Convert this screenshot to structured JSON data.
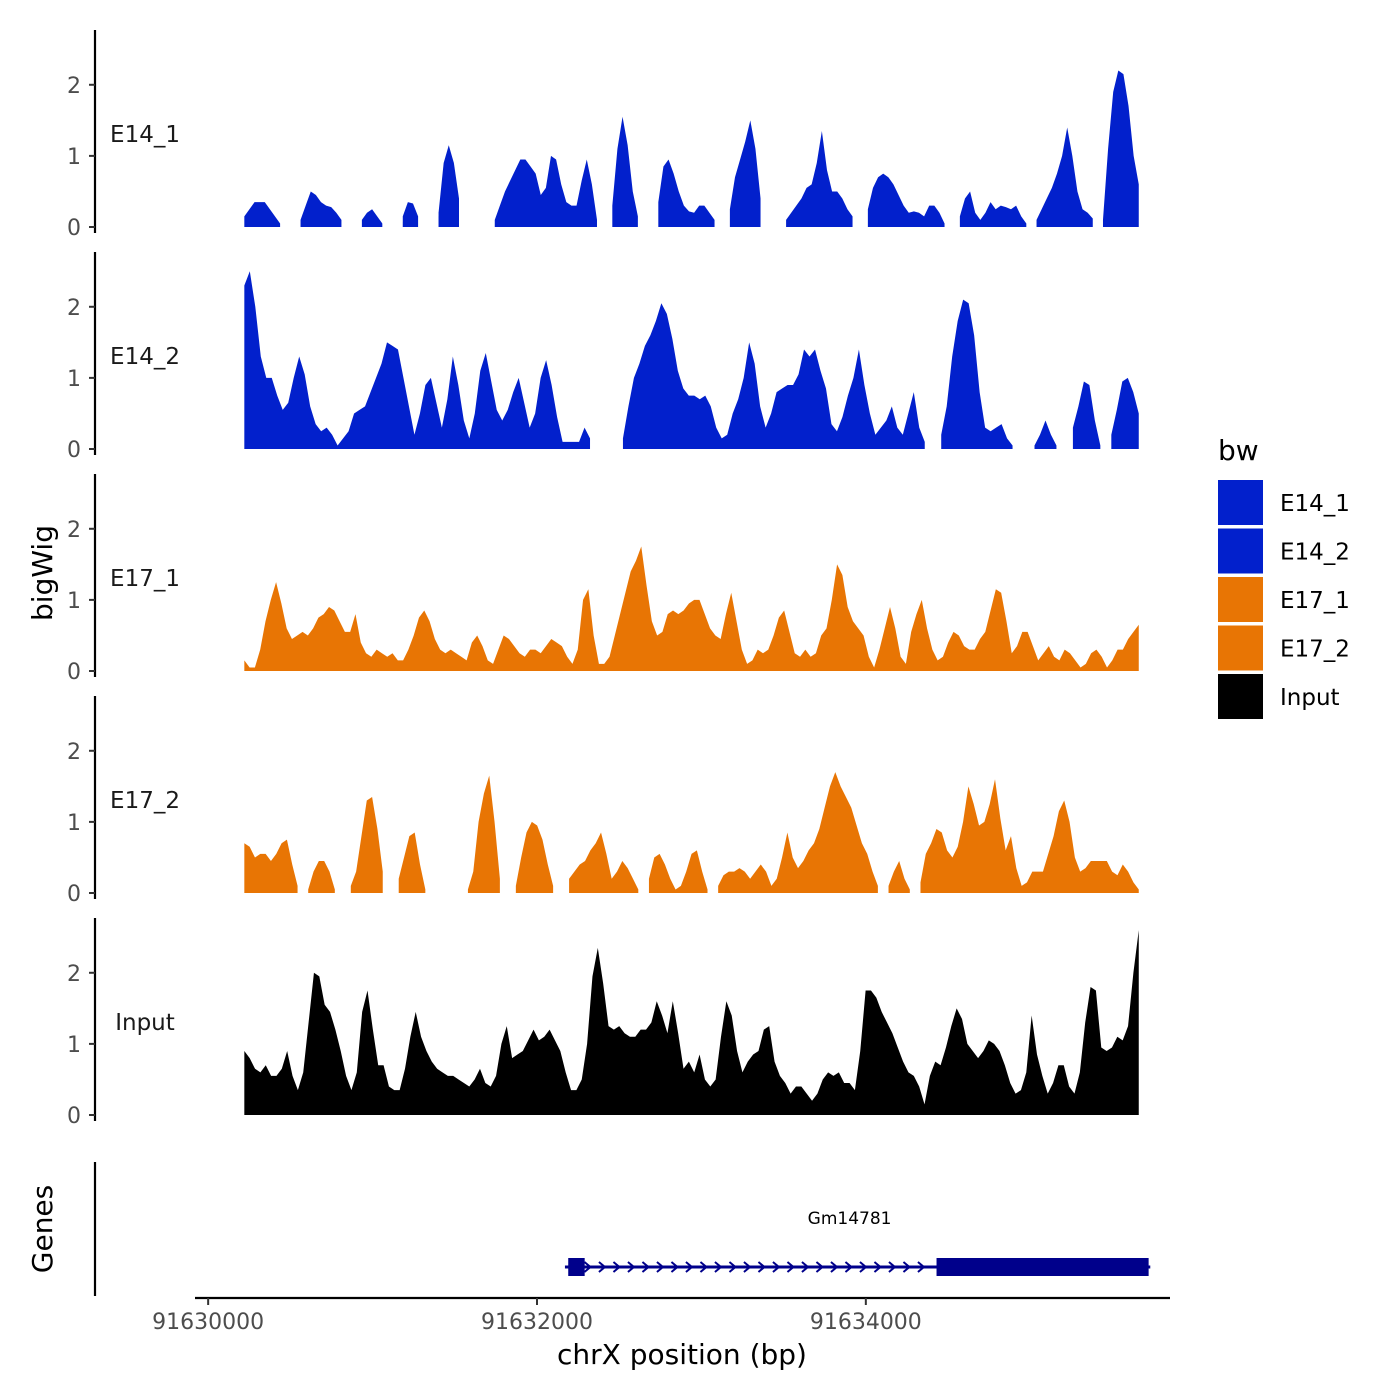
{
  "chart_data": {
    "type": "area",
    "ylabel": "bigWig",
    "xlabel": "chrX position (bp)",
    "ylim": [
      0,
      2.7
    ],
    "yticks": [
      "0",
      "1",
      "2"
    ],
    "xlim": [
      91629920,
      91635850
    ],
    "xticks": [
      {
        "value": 91630000,
        "label": "91630000"
      },
      {
        "value": 91632000,
        "label": "91632000"
      },
      {
        "value": 91634000,
        "label": "91634000"
      }
    ],
    "data_range": [
      91630220,
      91635660
    ],
    "legend": {
      "title": "bw",
      "entries": [
        {
          "label": "E14_1",
          "color": "#0220CC"
        },
        {
          "label": "E14_2",
          "color": "#0220CC"
        },
        {
          "label": "E17_1",
          "color": "#E87504"
        },
        {
          "label": "E17_2",
          "color": "#E87504"
        },
        {
          "label": "Input",
          "color": "#000000"
        }
      ]
    },
    "series": [
      {
        "name": "E14_1",
        "color": "#0220CC",
        "values": [
          0.15,
          0.25,
          0.35,
          0.35,
          0.35,
          0.25,
          0.15,
          0.05,
          null,
          null,
          null,
          0.1,
          0.3,
          0.5,
          0.45,
          0.35,
          0.3,
          0.28,
          0.2,
          0.1,
          null,
          null,
          null,
          0.1,
          0.2,
          0.25,
          0.15,
          0.05,
          null,
          null,
          null,
          0.15,
          0.35,
          0.33,
          0.15,
          null,
          null,
          null,
          0.2,
          0.9,
          1.15,
          0.9,
          0.4,
          null,
          null,
          null,
          null,
          null,
          null,
          0.1,
          0.3,
          0.5,
          0.65,
          0.8,
          0.95,
          0.95,
          0.85,
          0.75,
          0.45,
          0.55,
          1.0,
          0.95,
          0.6,
          0.35,
          0.3,
          0.3,
          0.65,
          0.95,
          0.6,
          0.1,
          null,
          null,
          0.3,
          1.1,
          1.55,
          1.15,
          0.5,
          0.15,
          null,
          null,
          null,
          0.35,
          0.85,
          0.95,
          0.75,
          0.5,
          0.3,
          0.22,
          0.2,
          0.3,
          0.3,
          0.2,
          0.1,
          null,
          null,
          0.25,
          0.7,
          0.95,
          1.2,
          1.5,
          1.1,
          0.4,
          null,
          null,
          null,
          null,
          0.1,
          0.2,
          0.3,
          0.4,
          0.55,
          0.6,
          0.9,
          1.35,
          0.8,
          0.5,
          0.5,
          0.4,
          0.25,
          0.15,
          null,
          null,
          0.25,
          0.55,
          0.7,
          0.75,
          0.7,
          0.6,
          0.45,
          0.3,
          0.2,
          0.22,
          0.2,
          0.15,
          0.3,
          0.3,
          0.2,
          0.05,
          null,
          null,
          0.15,
          0.4,
          0.5,
          0.2,
          0.1,
          0.2,
          0.35,
          0.25,
          0.3,
          0.28,
          0.25,
          0.3,
          0.15,
          0.05,
          null,
          0.1,
          0.25,
          0.4,
          0.55,
          0.75,
          1.0,
          1.4,
          1.0,
          0.5,
          0.25,
          0.2,
          0.12,
          null,
          0.1,
          1.1,
          1.9,
          2.2,
          2.15,
          1.7,
          1.0,
          0.6
        ]
      },
      {
        "name": "E14_2",
        "color": "#0220CC",
        "values": [
          2.3,
          2.5,
          2.0,
          1.3,
          1.0,
          1.0,
          0.75,
          0.55,
          0.65,
          1.0,
          1.3,
          1.05,
          0.6,
          0.35,
          0.25,
          0.3,
          0.2,
          0.05,
          0.15,
          0.25,
          0.5,
          0.55,
          0.6,
          0.8,
          1.0,
          1.2,
          1.5,
          1.45,
          1.4,
          1.0,
          0.6,
          0.2,
          0.5,
          0.9,
          1.0,
          0.65,
          0.3,
          0.7,
          1.3,
          0.9,
          0.4,
          0.15,
          0.5,
          1.1,
          1.35,
          0.95,
          0.55,
          0.4,
          0.55,
          0.8,
          1.0,
          0.65,
          0.3,
          0.5,
          1.0,
          1.25,
          0.9,
          0.45,
          0.1,
          0.1,
          0.1,
          0.1,
          0.3,
          0.15,
          null,
          null,
          null,
          null,
          null,
          0.15,
          0.6,
          1.0,
          1.2,
          1.45,
          1.6,
          1.8,
          2.05,
          1.9,
          1.55,
          1.1,
          0.85,
          0.75,
          0.75,
          0.7,
          0.75,
          0.6,
          0.3,
          0.15,
          0.2,
          0.5,
          0.7,
          1.0,
          1.5,
          1.2,
          0.6,
          0.3,
          0.5,
          0.8,
          0.85,
          0.9,
          0.9,
          1.05,
          1.4,
          1.3,
          1.4,
          1.1,
          0.85,
          0.35,
          0.25,
          0.45,
          0.75,
          1.0,
          1.4,
          0.9,
          0.5,
          0.2,
          0.3,
          0.4,
          0.6,
          0.3,
          0.2,
          0.5,
          0.8,
          0.3,
          0.1,
          null,
          null,
          0.2,
          0.6,
          1.3,
          1.8,
          2.1,
          2.05,
          1.6,
          0.8,
          0.3,
          0.25,
          0.3,
          0.35,
          0.15,
          0.05,
          null,
          null,
          null,
          0.05,
          0.2,
          0.4,
          0.2,
          0.05,
          null,
          null,
          0.3,
          0.6,
          0.95,
          0.9,
          0.4,
          0.05,
          null,
          0.2,
          0.55,
          0.95,
          1.0,
          0.8,
          0.5
        ]
      },
      {
        "name": "E17_1",
        "color": "#E87504",
        "values": [
          0.15,
          0.05,
          0.05,
          0.3,
          0.7,
          1.0,
          1.25,
          0.95,
          0.6,
          0.45,
          0.5,
          0.55,
          0.5,
          0.6,
          0.75,
          0.8,
          0.9,
          0.85,
          0.7,
          0.55,
          0.55,
          0.8,
          0.4,
          0.25,
          0.2,
          0.3,
          0.25,
          0.2,
          0.25,
          0.15,
          0.15,
          0.3,
          0.5,
          0.75,
          0.85,
          0.7,
          0.45,
          0.3,
          0.25,
          0.3,
          0.25,
          0.2,
          0.15,
          0.4,
          0.5,
          0.35,
          0.15,
          0.1,
          0.3,
          0.5,
          0.45,
          0.35,
          0.25,
          0.2,
          0.3,
          0.3,
          0.25,
          0.35,
          0.45,
          0.4,
          0.35,
          0.2,
          0.1,
          0.3,
          1.0,
          1.15,
          0.5,
          0.1,
          0.1,
          0.2,
          0.5,
          0.8,
          1.1,
          1.4,
          1.55,
          1.75,
          1.2,
          0.7,
          0.5,
          0.55,
          0.8,
          0.85,
          0.8,
          0.85,
          0.95,
          1.0,
          1.0,
          0.8,
          0.6,
          0.5,
          0.45,
          0.8,
          1.1,
          0.7,
          0.3,
          0.1,
          0.15,
          0.3,
          0.25,
          0.3,
          0.5,
          0.75,
          0.85,
          0.55,
          0.25,
          0.2,
          0.3,
          0.2,
          0.25,
          0.5,
          0.6,
          1.0,
          1.5,
          1.35,
          0.9,
          0.7,
          0.6,
          0.5,
          0.2,
          0.05,
          0.3,
          0.6,
          0.9,
          0.6,
          0.2,
          0.1,
          0.55,
          0.8,
          1.0,
          0.6,
          0.3,
          0.15,
          0.2,
          0.4,
          0.55,
          0.5,
          0.35,
          0.3,
          0.3,
          0.45,
          0.55,
          0.85,
          1.15,
          1.1,
          0.7,
          0.25,
          0.35,
          0.55,
          0.55,
          0.35,
          0.15,
          0.25,
          0.35,
          0.2,
          0.15,
          0.3,
          0.25,
          0.15,
          0.05,
          0.1,
          0.25,
          0.3,
          0.2,
          0.05,
          0.15,
          0.3,
          0.3,
          0.45,
          0.55,
          0.65
        ]
      },
      {
        "name": "E17_2",
        "color": "#E87504",
        "values": [
          0.7,
          0.65,
          0.5,
          0.55,
          0.55,
          0.45,
          0.55,
          0.7,
          0.75,
          0.4,
          0.1,
          null,
          0.05,
          0.3,
          0.45,
          0.45,
          0.3,
          0.05,
          null,
          null,
          0.1,
          0.3,
          0.8,
          1.3,
          1.35,
          0.9,
          0.3,
          null,
          null,
          0.2,
          0.5,
          0.8,
          0.85,
          0.4,
          0.05,
          null,
          null,
          null,
          null,
          null,
          null,
          null,
          0.05,
          0.3,
          1.0,
          1.4,
          1.65,
          1.0,
          0.2,
          null,
          null,
          0.1,
          0.5,
          0.85,
          1.0,
          0.95,
          0.75,
          0.4,
          0.1,
          null,
          null,
          0.2,
          0.3,
          0.4,
          0.45,
          0.6,
          0.7,
          0.85,
          0.55,
          0.2,
          0.3,
          0.45,
          0.35,
          0.2,
          0.05,
          null,
          0.2,
          0.5,
          0.55,
          0.4,
          0.2,
          0.05,
          0.1,
          0.3,
          0.55,
          0.6,
          0.3,
          0.05,
          null,
          0.1,
          0.25,
          0.3,
          0.3,
          0.35,
          0.3,
          0.2,
          0.3,
          0.4,
          0.3,
          0.1,
          0.2,
          0.5,
          0.85,
          0.5,
          0.35,
          0.45,
          0.6,
          0.7,
          0.9,
          1.2,
          1.5,
          1.7,
          1.5,
          1.35,
          1.2,
          0.95,
          0.7,
          0.55,
          0.3,
          0.1,
          null,
          0.1,
          0.3,
          0.45,
          0.2,
          0.05,
          null,
          0.15,
          0.55,
          0.7,
          0.9,
          0.85,
          0.6,
          0.5,
          0.65,
          1.0,
          1.5,
          1.25,
          0.95,
          1.0,
          1.25,
          1.6,
          1.05,
          0.6,
          0.8,
          0.35,
          0.1,
          0.15,
          0.3,
          0.3,
          0.3,
          0.55,
          0.8,
          1.15,
          1.3,
          1.0,
          0.5,
          0.3,
          0.35,
          0.45,
          0.45,
          0.45,
          0.45,
          0.3,
          0.25,
          0.4,
          0.3,
          0.15,
          0.05
        ]
      },
      {
        "name": "Input",
        "color": "#000000",
        "values": [
          0.9,
          0.8,
          0.65,
          0.6,
          0.7,
          0.55,
          0.55,
          0.65,
          0.9,
          0.55,
          0.35,
          0.6,
          1.3,
          2.0,
          1.95,
          1.55,
          1.45,
          1.2,
          0.9,
          0.55,
          0.35,
          0.6,
          1.45,
          1.75,
          1.2,
          0.7,
          0.7,
          0.4,
          0.35,
          0.35,
          0.65,
          1.1,
          1.45,
          1.1,
          0.9,
          0.75,
          0.65,
          0.6,
          0.55,
          0.55,
          0.5,
          0.45,
          0.4,
          0.5,
          0.65,
          0.45,
          0.4,
          0.55,
          1.0,
          1.25,
          0.8,
          0.85,
          0.9,
          1.05,
          1.2,
          1.05,
          1.1,
          1.2,
          1.05,
          0.9,
          0.6,
          0.35,
          0.35,
          0.5,
          1.0,
          1.95,
          2.35,
          1.85,
          1.25,
          1.2,
          1.25,
          1.15,
          1.1,
          1.1,
          1.2,
          1.2,
          1.3,
          1.6,
          1.4,
          1.15,
          1.6,
          1.15,
          0.65,
          0.75,
          0.6,
          0.85,
          0.5,
          0.4,
          0.5,
          1.1,
          1.6,
          1.4,
          0.9,
          0.6,
          0.75,
          0.85,
          0.9,
          1.2,
          1.25,
          0.75,
          0.55,
          0.45,
          0.3,
          0.4,
          0.4,
          0.3,
          0.2,
          0.3,
          0.5,
          0.6,
          0.55,
          0.6,
          0.45,
          0.45,
          0.35,
          0.9,
          1.75,
          1.75,
          1.65,
          1.45,
          1.3,
          1.15,
          0.95,
          0.75,
          0.6,
          0.55,
          0.4,
          0.15,
          0.55,
          0.75,
          0.7,
          0.95,
          1.25,
          1.5,
          1.35,
          1.0,
          0.9,
          0.8,
          0.9,
          1.05,
          1.0,
          0.9,
          0.7,
          0.45,
          0.3,
          0.35,
          0.6,
          1.4,
          0.85,
          0.55,
          0.3,
          0.45,
          0.7,
          0.7,
          0.4,
          0.3,
          0.6,
          1.3,
          1.8,
          1.75,
          0.95,
          0.9,
          0.95,
          1.1,
          1.05,
          1.25,
          2.0,
          2.6
        ]
      }
    ]
  },
  "genes_track": {
    "label": "Genes",
    "gene_name": "Gm14781",
    "color": "#00008B",
    "strand": "+",
    "tx_start": 91632170,
    "tx_end": 91635730,
    "exons": [
      [
        91632190,
        91632290
      ],
      [
        91634430,
        91635720
      ]
    ]
  }
}
